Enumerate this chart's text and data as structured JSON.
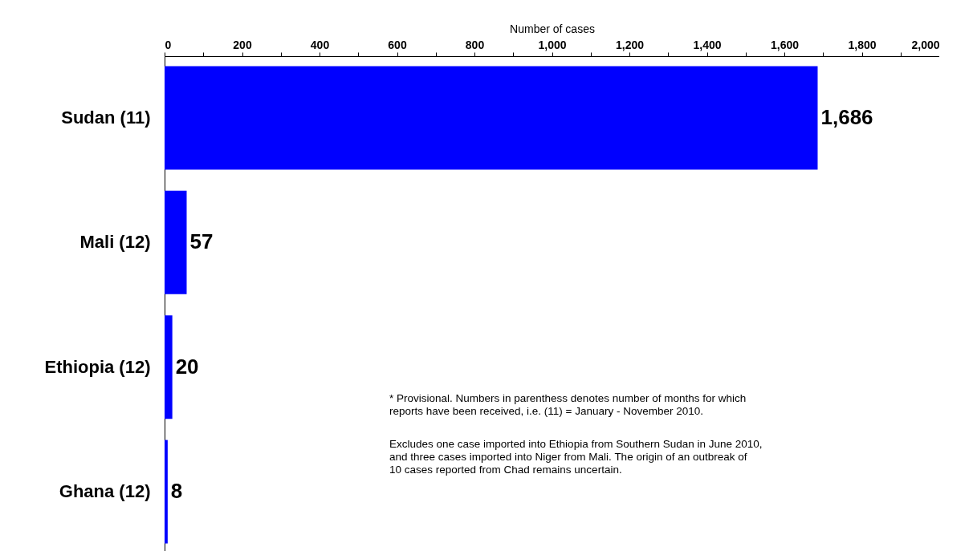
{
  "chart_data": {
    "type": "bar",
    "orientation": "horizontal",
    "xlabel": "Number of cases",
    "categories": [
      "Sudan (11)",
      "Mali (12)",
      "Ethiopia (12)",
      "Ghana (12)"
    ],
    "values": [
      1686,
      57,
      20,
      8
    ],
    "color": "#0000ff",
    "xlim": [
      0,
      2000
    ],
    "xticks": [
      0,
      {
        "value": 100,
        "label": null
      },
      200,
      {
        "value": 300,
        "label": null
      },
      400,
      {
        "value": 500,
        "label": null
      },
      600,
      {
        "value": 700,
        "label": null
      },
      800,
      {
        "value": 900,
        "label": null
      },
      {
        "value": 1000,
        "label": "1,000"
      },
      {
        "value": 1100,
        "label": null
      },
      {
        "value": 1200,
        "label": "1,200"
      },
      {
        "value": 1300,
        "label": null
      },
      {
        "value": 1400,
        "label": "1,400"
      },
      {
        "value": 1500,
        "label": null
      },
      {
        "value": 1600,
        "label": "1,600"
      },
      {
        "value": 1700,
        "label": null
      },
      {
        "value": 1800,
        "label": "1,800"
      },
      {
        "value": 1900,
        "label": null
      },
      {
        "value": 2000,
        "label": "2,000"
      }
    ],
    "value_labels": [
      "1,686",
      "57",
      "20",
      "8"
    ],
    "grid": false,
    "annotations": [
      "* Provisional. Numbers in parenthess denotes number of months for which reports have been received, i.e. (11) = January - November 2010.",
      "Excludes one case imported into Ethiopia from Southern Sudan in June 2010, and three cases imported into Niger from Mali. The origin of an outbreak of 10 cases reported from Chad remains uncertain."
    ]
  }
}
